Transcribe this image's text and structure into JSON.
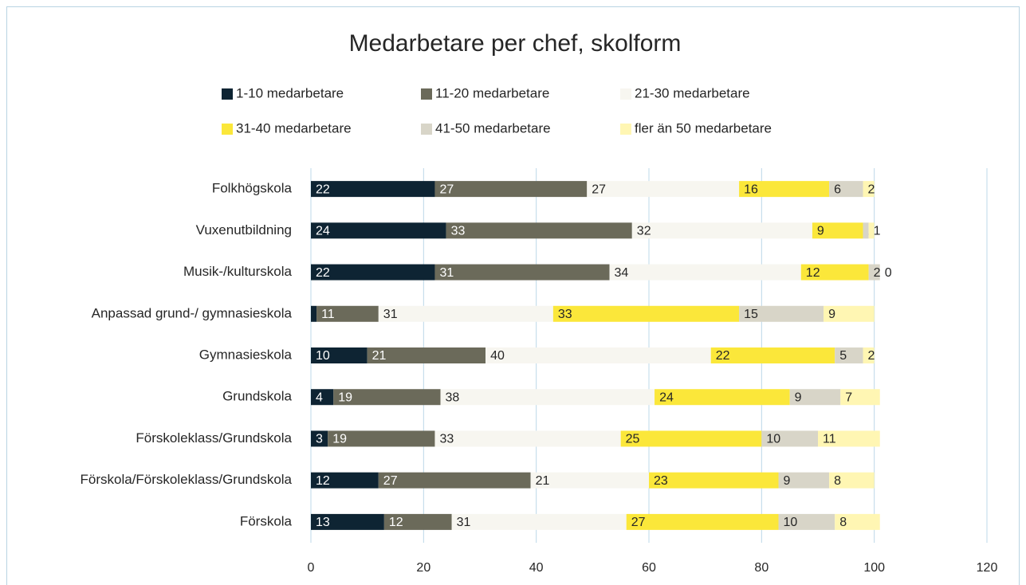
{
  "chart_data": {
    "type": "stacked-bar-horizontal",
    "title": "Medarbetare per chef, skolform",
    "categories": [
      "Folkhögskola",
      "Vuxenutbildning",
      "Musik-/kulturskola",
      "Anpassad grund-/ gymnasieskola",
      "Gymnasieskola",
      "Grundskola",
      "Förskoleklass/Grundskola",
      "Förskola/Förskoleklass/Grundskola",
      "Förskola"
    ],
    "series": [
      {
        "name": "1-10 medarbetare",
        "color": "#0e2433",
        "values": [
          22,
          24,
          22,
          1,
          10,
          4,
          3,
          12,
          13
        ]
      },
      {
        "name": "11-20 medarbetare",
        "color": "#6b6a5a",
        "values": [
          27,
          33,
          31,
          11,
          21,
          19,
          19,
          27,
          12
        ]
      },
      {
        "name": "21-30 medarbetare",
        "color": "#f7f6f0",
        "values": [
          27,
          32,
          34,
          31,
          40,
          38,
          33,
          21,
          31
        ]
      },
      {
        "name": "31-40 medarbetare",
        "color": "#fbe73a",
        "values": [
          16,
          9,
          12,
          33,
          22,
          24,
          25,
          23,
          27
        ]
      },
      {
        "name": "41-50 medarbetare",
        "color": "#d8d5c8",
        "values": [
          6,
          1,
          2,
          15,
          5,
          9,
          10,
          9,
          10
        ]
      },
      {
        "name": "fler än 50 medarbetare",
        "color": "#fff6b3",
        "values": [
          2,
          1,
          0,
          9,
          2,
          7,
          11,
          8,
          8
        ]
      }
    ],
    "xlim": [
      0,
      120
    ],
    "xticks": [
      0,
      20,
      40,
      60,
      80,
      100,
      120
    ],
    "grid": true
  }
}
